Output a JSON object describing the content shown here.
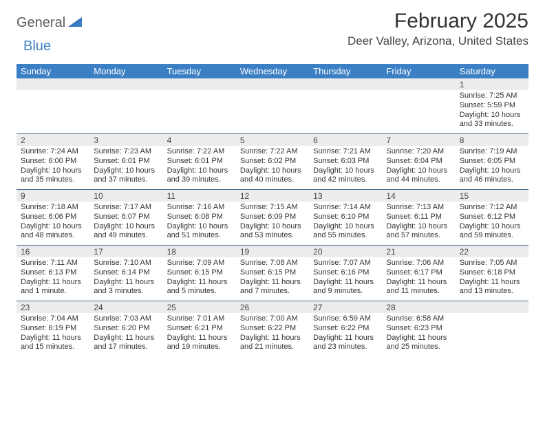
{
  "logo": {
    "text1": "General",
    "text2": "Blue"
  },
  "title": "February 2025",
  "location": "Deer Valley, Arizona, United States",
  "colors": {
    "header_bar": "#3b7fc4",
    "band": "#ececec",
    "rule": "#4a6a8a",
    "text": "#333333",
    "logo_gray": "#5a5a5a",
    "logo_blue": "#3b7fc4",
    "background": "#ffffff"
  },
  "dow": [
    "Sunday",
    "Monday",
    "Tuesday",
    "Wednesday",
    "Thursday",
    "Friday",
    "Saturday"
  ],
  "weeks": [
    [
      {
        "n": "",
        "lines": []
      },
      {
        "n": "",
        "lines": []
      },
      {
        "n": "",
        "lines": []
      },
      {
        "n": "",
        "lines": []
      },
      {
        "n": "",
        "lines": []
      },
      {
        "n": "",
        "lines": []
      },
      {
        "n": "1",
        "lines": [
          "Sunrise: 7:25 AM",
          "Sunset: 5:59 PM",
          "Daylight: 10 hours",
          "and 33 minutes."
        ]
      }
    ],
    [
      {
        "n": "2",
        "lines": [
          "Sunrise: 7:24 AM",
          "Sunset: 6:00 PM",
          "Daylight: 10 hours",
          "and 35 minutes."
        ]
      },
      {
        "n": "3",
        "lines": [
          "Sunrise: 7:23 AM",
          "Sunset: 6:01 PM",
          "Daylight: 10 hours",
          "and 37 minutes."
        ]
      },
      {
        "n": "4",
        "lines": [
          "Sunrise: 7:22 AM",
          "Sunset: 6:01 PM",
          "Daylight: 10 hours",
          "and 39 minutes."
        ]
      },
      {
        "n": "5",
        "lines": [
          "Sunrise: 7:22 AM",
          "Sunset: 6:02 PM",
          "Daylight: 10 hours",
          "and 40 minutes."
        ]
      },
      {
        "n": "6",
        "lines": [
          "Sunrise: 7:21 AM",
          "Sunset: 6:03 PM",
          "Daylight: 10 hours",
          "and 42 minutes."
        ]
      },
      {
        "n": "7",
        "lines": [
          "Sunrise: 7:20 AM",
          "Sunset: 6:04 PM",
          "Daylight: 10 hours",
          "and 44 minutes."
        ]
      },
      {
        "n": "8",
        "lines": [
          "Sunrise: 7:19 AM",
          "Sunset: 6:05 PM",
          "Daylight: 10 hours",
          "and 46 minutes."
        ]
      }
    ],
    [
      {
        "n": "9",
        "lines": [
          "Sunrise: 7:18 AM",
          "Sunset: 6:06 PM",
          "Daylight: 10 hours",
          "and 48 minutes."
        ]
      },
      {
        "n": "10",
        "lines": [
          "Sunrise: 7:17 AM",
          "Sunset: 6:07 PM",
          "Daylight: 10 hours",
          "and 49 minutes."
        ]
      },
      {
        "n": "11",
        "lines": [
          "Sunrise: 7:16 AM",
          "Sunset: 6:08 PM",
          "Daylight: 10 hours",
          "and 51 minutes."
        ]
      },
      {
        "n": "12",
        "lines": [
          "Sunrise: 7:15 AM",
          "Sunset: 6:09 PM",
          "Daylight: 10 hours",
          "and 53 minutes."
        ]
      },
      {
        "n": "13",
        "lines": [
          "Sunrise: 7:14 AM",
          "Sunset: 6:10 PM",
          "Daylight: 10 hours",
          "and 55 minutes."
        ]
      },
      {
        "n": "14",
        "lines": [
          "Sunrise: 7:13 AM",
          "Sunset: 6:11 PM",
          "Daylight: 10 hours",
          "and 57 minutes."
        ]
      },
      {
        "n": "15",
        "lines": [
          "Sunrise: 7:12 AM",
          "Sunset: 6:12 PM",
          "Daylight: 10 hours",
          "and 59 minutes."
        ]
      }
    ],
    [
      {
        "n": "16",
        "lines": [
          "Sunrise: 7:11 AM",
          "Sunset: 6:13 PM",
          "Daylight: 11 hours",
          "and 1 minute."
        ]
      },
      {
        "n": "17",
        "lines": [
          "Sunrise: 7:10 AM",
          "Sunset: 6:14 PM",
          "Daylight: 11 hours",
          "and 3 minutes."
        ]
      },
      {
        "n": "18",
        "lines": [
          "Sunrise: 7:09 AM",
          "Sunset: 6:15 PM",
          "Daylight: 11 hours",
          "and 5 minutes."
        ]
      },
      {
        "n": "19",
        "lines": [
          "Sunrise: 7:08 AM",
          "Sunset: 6:15 PM",
          "Daylight: 11 hours",
          "and 7 minutes."
        ]
      },
      {
        "n": "20",
        "lines": [
          "Sunrise: 7:07 AM",
          "Sunset: 6:16 PM",
          "Daylight: 11 hours",
          "and 9 minutes."
        ]
      },
      {
        "n": "21",
        "lines": [
          "Sunrise: 7:06 AM",
          "Sunset: 6:17 PM",
          "Daylight: 11 hours",
          "and 11 minutes."
        ]
      },
      {
        "n": "22",
        "lines": [
          "Sunrise: 7:05 AM",
          "Sunset: 6:18 PM",
          "Daylight: 11 hours",
          "and 13 minutes."
        ]
      }
    ],
    [
      {
        "n": "23",
        "lines": [
          "Sunrise: 7:04 AM",
          "Sunset: 6:19 PM",
          "Daylight: 11 hours",
          "and 15 minutes."
        ]
      },
      {
        "n": "24",
        "lines": [
          "Sunrise: 7:03 AM",
          "Sunset: 6:20 PM",
          "Daylight: 11 hours",
          "and 17 minutes."
        ]
      },
      {
        "n": "25",
        "lines": [
          "Sunrise: 7:01 AM",
          "Sunset: 6:21 PM",
          "Daylight: 11 hours",
          "and 19 minutes."
        ]
      },
      {
        "n": "26",
        "lines": [
          "Sunrise: 7:00 AM",
          "Sunset: 6:22 PM",
          "Daylight: 11 hours",
          "and 21 minutes."
        ]
      },
      {
        "n": "27",
        "lines": [
          "Sunrise: 6:59 AM",
          "Sunset: 6:22 PM",
          "Daylight: 11 hours",
          "and 23 minutes."
        ]
      },
      {
        "n": "28",
        "lines": [
          "Sunrise: 6:58 AM",
          "Sunset: 6:23 PM",
          "Daylight: 11 hours",
          "and 25 minutes."
        ]
      },
      {
        "n": "",
        "lines": []
      }
    ]
  ]
}
